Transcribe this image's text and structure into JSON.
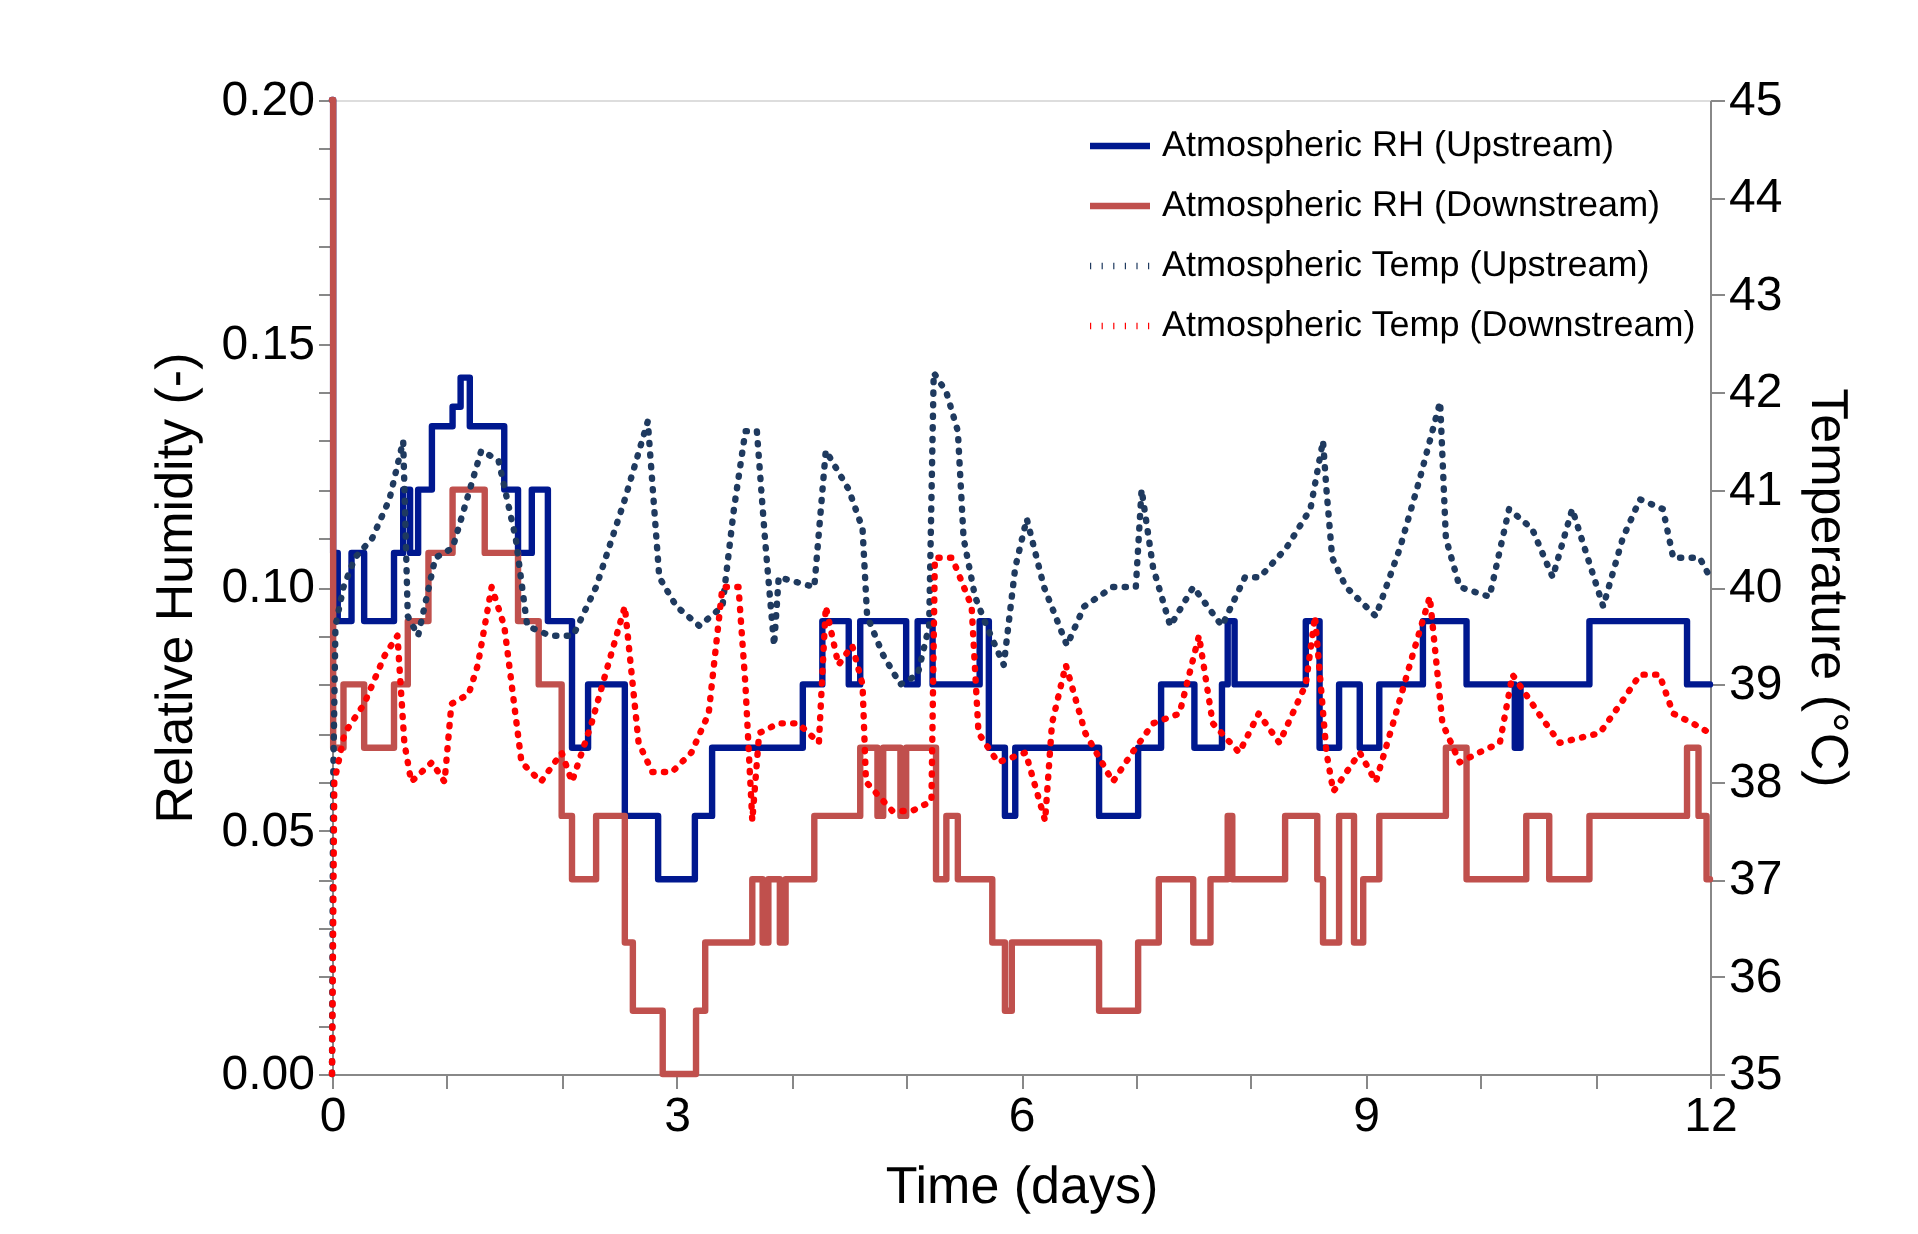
{
  "chart_data": {
    "type": "line",
    "xlabel": "Time (days)",
    "ylabel": "Relative Humidity (-)",
    "y2label": "Temperature (°C)",
    "xlim": [
      0,
      12
    ],
    "xticks": [
      0,
      {
        "value": 1,
        "label": null
      },
      {
        "value": 2,
        "label": null
      },
      3,
      {
        "value": 4,
        "label": null
      },
      {
        "value": 5,
        "label": null
      },
      6,
      {
        "value": 7,
        "label": null
      },
      {
        "value": 8,
        "label": null
      },
      9,
      {
        "value": 10,
        "label": null
      },
      {
        "value": 11,
        "label": null
      },
      12
    ],
    "ylim": [
      0,
      0.2
    ],
    "yticks": [
      {
        "value": 0,
        "label": "0.00"
      },
      {
        "value": 0.01,
        "label": null
      },
      {
        "value": 0.02,
        "label": null
      },
      {
        "value": 0.03,
        "label": null
      },
      {
        "value": 0.04,
        "label": null
      },
      0.05,
      {
        "value": 0.06,
        "label": null
      },
      {
        "value": 0.07,
        "label": null
      },
      {
        "value": 0.08,
        "label": null
      },
      {
        "value": 0.09,
        "label": null
      },
      {
        "value": 0.1,
        "label": "0.10"
      },
      {
        "value": 0.11,
        "label": null
      },
      {
        "value": 0.12,
        "label": null
      },
      {
        "value": 0.13,
        "label": null
      },
      {
        "value": 0.14,
        "label": null
      },
      0.15,
      {
        "value": 0.16,
        "label": null
      },
      {
        "value": 0.17,
        "label": null
      },
      {
        "value": 0.18,
        "label": null
      },
      {
        "value": 0.19,
        "label": null
      },
      {
        "value": 0.2,
        "label": "0.20"
      }
    ],
    "y2lim": [
      35,
      45
    ],
    "y2ticks": [
      35,
      36,
      37,
      38,
      39,
      40,
      41,
      42,
      43,
      44,
      45
    ],
    "legend": "top right",
    "marker": "none",
    "series": [
      {
        "name": "Atmospheric RH (Upstream)",
        "type": "step",
        "color": "#00188f",
        "line_style": "solid",
        "x": [
          0,
          0.01,
          0.05,
          0.17,
          0.28,
          0.54,
          0.62,
          0.68,
          0.75,
          0.87,
          1.05,
          1.12,
          1.2,
          1.5,
          1.62,
          1.74,
          1.88,
          2.09,
          2.23,
          2.55,
          2.84,
          3.16,
          3.31,
          4.1,
          4.27,
          4.5,
          4.6,
          5.0,
          5.1,
          5.23,
          5.64,
          5.72,
          5.86,
          5.95,
          6.68,
          7.02,
          7.22,
          7.51,
          7.75,
          7.8,
          7.86,
          8.48,
          8.6,
          8.77,
          8.95,
          9.12,
          9.5,
          9.88,
          10.3,
          10.35,
          10.95,
          11.8,
          12
        ],
        "values": [
          0.2,
          0.107,
          0.093,
          0.107,
          0.093,
          0.107,
          0.12,
          0.107,
          0.12,
          0.133,
          0.137,
          0.143,
          0.133,
          0.12,
          0.107,
          0.12,
          0.093,
          0.067,
          0.08,
          0.053,
          0.04,
          0.053,
          0.067,
          0.08,
          0.093,
          0.08,
          0.093,
          0.08,
          0.093,
          0.08,
          0.093,
          0.067,
          0.053,
          0.067,
          0.053,
          0.067,
          0.08,
          0.067,
          0.08,
          0.093,
          0.08,
          0.093,
          0.067,
          0.08,
          0.067,
          0.08,
          0.093,
          0.08,
          0.067,
          0.08,
          0.093,
          0.08,
          0.08
        ]
      },
      {
        "name": "Atmospheric RH (Downstream)",
        "type": "step",
        "color": "#c0504d",
        "line_style": "solid",
        "x": [
          0,
          0.01,
          0.1,
          0.28,
          0.54,
          0.66,
          0.84,
          1.05,
          1.33,
          1.62,
          1.8,
          2.0,
          2.09,
          2.3,
          2.55,
          2.62,
          2.88,
          3.17,
          3.25,
          3.66,
          3.75,
          3.8,
          3.9,
          3.95,
          4.2,
          4.6,
          4.75,
          4.8,
          4.95,
          5.0,
          5.26,
          5.35,
          5.45,
          5.75,
          5.86,
          5.92,
          6.68,
          7.02,
          7.2,
          7.5,
          7.65,
          7.8,
          7.84,
          8.3,
          8.58,
          8.63,
          8.77,
          8.9,
          8.98,
          9.12,
          9.7,
          9.88,
          10.4,
          10.6,
          10.95,
          11.8,
          11.9,
          11.97,
          12
        ],
        "values": [
          0.2,
          0.067,
          0.08,
          0.067,
          0.08,
          0.093,
          0.107,
          0.12,
          0.107,
          0.093,
          0.08,
          0.053,
          0.04,
          0.053,
          0.027,
          0.013,
          0,
          0.013,
          0.027,
          0.04,
          0.027,
          0.04,
          0.027,
          0.04,
          0.053,
          0.067,
          0.053,
          0.067,
          0.053,
          0.067,
          0.04,
          0.053,
          0.04,
          0.027,
          0.013,
          0.027,
          0.013,
          0.027,
          0.04,
          0.027,
          0.04,
          0.053,
          0.04,
          0.053,
          0.04,
          0.027,
          0.053,
          0.027,
          0.04,
          0.053,
          0.067,
          0.04,
          0.053,
          0.04,
          0.053,
          0.067,
          0.053,
          0.04,
          0.04
        ]
      },
      {
        "name": "Atmospheric Temp (Upstream)",
        "axis": "y2",
        "color": "#1f3a5f",
        "line_style": "dotted",
        "x": [
          0,
          0.01,
          0.03,
          0.1,
          0.2,
          0.35,
          0.5,
          0.62,
          0.66,
          0.75,
          0.9,
          1.05,
          1.3,
          1.45,
          1.6,
          1.7,
          1.9,
          2.1,
          2.3,
          2.55,
          2.75,
          2.85,
          3.0,
          3.2,
          3.4,
          3.5,
          3.6,
          3.7,
          3.77,
          3.85,
          3.89,
          4.2,
          4.3,
          4.4,
          4.5,
          4.62,
          4.66,
          4.8,
          4.95,
          5.1,
          5.2,
          5.24,
          5.35,
          5.45,
          5.5,
          5.6,
          5.7,
          5.85,
          5.95,
          6.05,
          6.2,
          6.4,
          6.55,
          6.8,
          7.0,
          7.05,
          7.15,
          7.3,
          7.5,
          7.75,
          7.95,
          8.08,
          8.31,
          8.52,
          8.63,
          8.66,
          8.71,
          8.83,
          9.09,
          9.3,
          9.47,
          9.65,
          9.7,
          9.82,
          10.08,
          10.25,
          10.45,
          10.63,
          10.8,
          11.07,
          11.24,
          11.39,
          11.59,
          11.68,
          11.91,
          12
        ],
        "values": [
          35,
          38,
          39.6,
          40.0,
          40.3,
          40.5,
          40.9,
          41.5,
          39.7,
          39.5,
          40.3,
          40.4,
          41.4,
          41.3,
          40.5,
          39.6,
          39.5,
          39.5,
          40.0,
          40.9,
          41.7,
          40.1,
          39.8,
          39.6,
          39.8,
          40.8,
          41.6,
          41.6,
          40.5,
          39.4,
          40.1,
          40.0,
          41.4,
          41.2,
          41.0,
          40.6,
          39.7,
          39.3,
          39.0,
          39.1,
          39.6,
          42.2,
          42.0,
          41.6,
          40.5,
          39.9,
          39.6,
          39.2,
          40.2,
          40.7,
          40.0,
          39.4,
          39.8,
          40.0,
          40.0,
          41.0,
          40.2,
          39.6,
          40.0,
          39.6,
          40.1,
          40.1,
          40.4,
          40.8,
          41.5,
          41.0,
          40.3,
          40.0,
          39.7,
          40.4,
          41.1,
          41.9,
          40.5,
          40.0,
          39.9,
          40.8,
          40.6,
          40.1,
          40.8,
          39.8,
          40.5,
          40.9,
          40.8,
          40.3,
          40.3,
          40.1
        ]
      },
      {
        "name": "Atmospheric Temp (Downstream)",
        "axis": "y2",
        "color": "#ff0000",
        "line_style": "dotted",
        "x": [
          0,
          0.02,
          0.11,
          0.28,
          0.46,
          0.57,
          0.63,
          0.69,
          0.87,
          0.98,
          1.04,
          1.19,
          1.27,
          1.39,
          1.5,
          1.65,
          1.82,
          2.0,
          2.09,
          2.26,
          2.38,
          2.55,
          2.67,
          2.79,
          2.96,
          3.13,
          3.28,
          3.4,
          3.54,
          3.6,
          3.66,
          3.72,
          3.89,
          4.06,
          4.24,
          4.3,
          4.41,
          4.53,
          4.62,
          4.65,
          4.88,
          5.05,
          5.22,
          5.25,
          5.4,
          5.57,
          5.63,
          5.8,
          6.04,
          6.21,
          6.27,
          6.39,
          6.56,
          6.8,
          6.97,
          7.15,
          7.38,
          7.55,
          7.67,
          7.9,
          8.07,
          8.25,
          8.48,
          8.56,
          8.66,
          8.72,
          8.95,
          9.09,
          9.24,
          9.41,
          9.56,
          9.67,
          9.82,
          9.99,
          10.17,
          10.28,
          10.51,
          10.69,
          11.04,
          11.22,
          11.39,
          11.56,
          11.68,
          11.85,
          12
        ],
        "values": [
          35,
          38.0,
          38.5,
          38.8,
          39.3,
          39.5,
          38.4,
          38.0,
          38.2,
          38.0,
          38.8,
          38.9,
          39.2,
          40.0,
          39.6,
          38.2,
          38.0,
          38.3,
          38.0,
          38.6,
          39.1,
          39.8,
          38.4,
          38.1,
          38.1,
          38.3,
          38.7,
          40.0,
          40.0,
          39.0,
          37.6,
          38.5,
          38.6,
          38.6,
          38.4,
          39.8,
          39.2,
          39.4,
          39.0,
          38.0,
          37.7,
          37.7,
          37.8,
          40.3,
          40.3,
          39.8,
          38.5,
          38.2,
          38.3,
          37.6,
          38.6,
          39.2,
          38.5,
          38.0,
          38.3,
          38.6,
          38.7,
          39.5,
          38.6,
          38.3,
          38.7,
          38.4,
          39.0,
          39.7,
          38.3,
          37.9,
          38.3,
          38.0,
          38.6,
          39.3,
          39.9,
          38.6,
          38.2,
          38.3,
          38.4,
          39.1,
          38.7,
          38.4,
          38.5,
          38.8,
          39.1,
          39.1,
          38.7,
          38.6,
          38.5
        ]
      }
    ]
  }
}
